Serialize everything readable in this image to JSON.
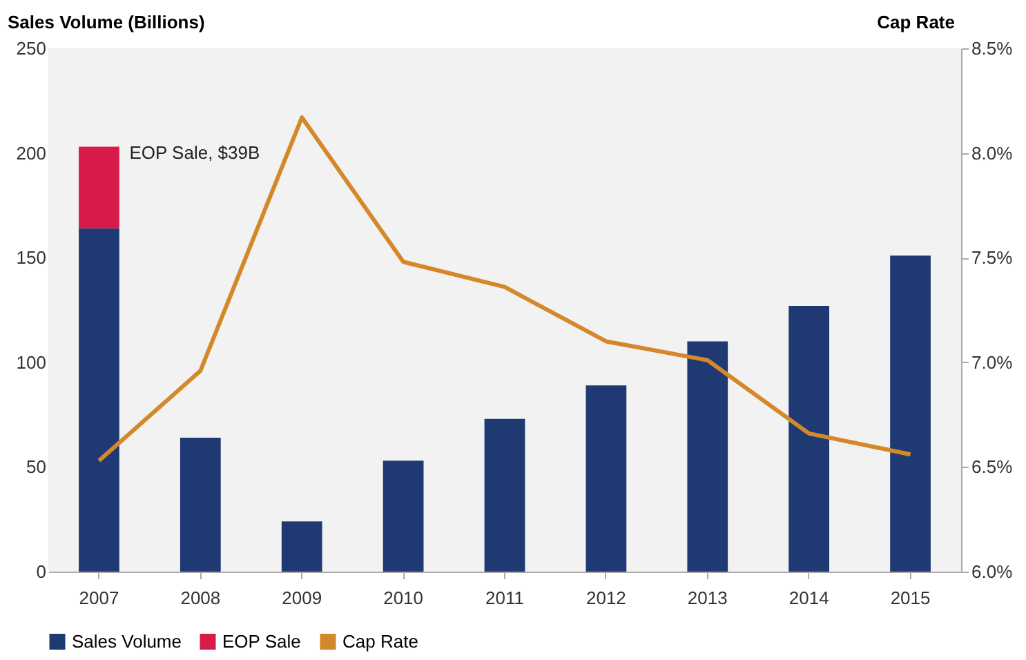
{
  "chart_data": {
    "type": "bar",
    "stacked": true,
    "ylabel": "Sales Volume (Billions)",
    "y2label": "Cap Rate",
    "categories": [
      "2007",
      "2008",
      "2009",
      "2010",
      "2011",
      "2012",
      "2013",
      "2014",
      "2015"
    ],
    "series": [
      {
        "name": "Sales Volume",
        "color": "#1f3a73",
        "values": [
          164,
          64,
          24,
          53,
          73,
          89,
          110,
          127,
          151
        ]
      },
      {
        "name": "EOP Sale",
        "color": "#d81b4a",
        "values": [
          39,
          null,
          null,
          null,
          null,
          null,
          null,
          null,
          null
        ]
      },
      {
        "name": "Cap Rate",
        "type": "line",
        "axis": "y2",
        "color": "#d4882a",
        "values": [
          6.53,
          6.96,
          8.17,
          7.48,
          7.36,
          7.1,
          7.01,
          6.66,
          6.56
        ]
      }
    ],
    "ylim": [
      0,
      250
    ],
    "yticks": [
      0,
      50,
      100,
      150,
      200,
      250
    ],
    "y2lim": [
      6.0,
      8.5
    ],
    "y2ticks": [
      {
        "value": 6.0,
        "label": "6.0%"
      },
      {
        "value": 6.5,
        "label": "6.5%"
      },
      {
        "value": 7.0,
        "label": "7.0%"
      },
      {
        "value": 7.5,
        "label": "7.5%"
      },
      {
        "value": 8.0,
        "label": "8.0%"
      },
      {
        "value": 8.5,
        "label": "8.5%"
      }
    ],
    "annotations": [
      {
        "text": "EOP Sale, $39B",
        "x": "2007",
        "y": 200
      }
    ],
    "legend": "bottom",
    "grid": false
  }
}
